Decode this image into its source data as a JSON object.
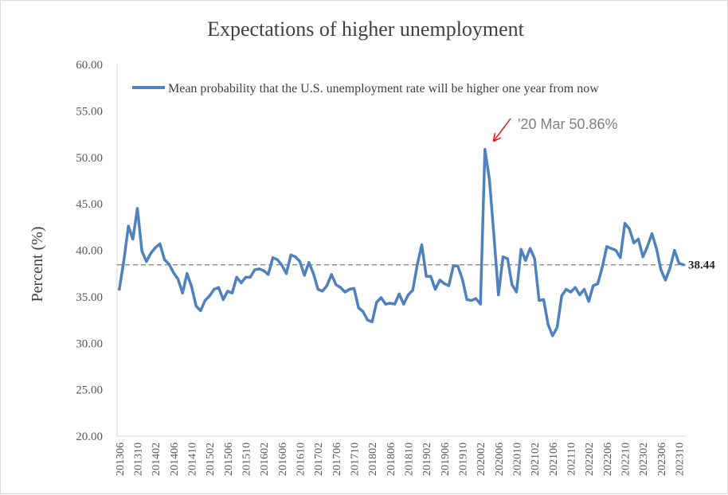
{
  "chart_data": {
    "type": "line",
    "title": "Expectations  of higher unemployment",
    "ylabel": "Percent (%)",
    "xlabel": "",
    "ylim": [
      20,
      60
    ],
    "yticks": [
      "20.00",
      "25.00",
      "30.00",
      "35.00",
      "40.00",
      "45.00",
      "50.00",
      "55.00",
      "60.00"
    ],
    "xticks": [
      "201306",
      "201310",
      "201402",
      "201406",
      "201410",
      "201502",
      "201506",
      "201510",
      "201602",
      "201606",
      "201610",
      "201702",
      "201706",
      "201710",
      "201802",
      "201806",
      "201810",
      "201902",
      "201906",
      "201910",
      "202002",
      "202006",
      "202010",
      "202102",
      "202106",
      "202110",
      "202202",
      "202206",
      "202210",
      "202302",
      "202306",
      "202310"
    ],
    "grid": false,
    "legend_position": "top",
    "series": [
      {
        "name": "Mean probability that the U.S. unemployment rate will be higher one year from now",
        "color": "#4f81bd",
        "start_month": "2013-06",
        "values": [
          35.8,
          38.9,
          42.6,
          41.2,
          44.5,
          39.9,
          38.8,
          39.7,
          40.3,
          40.7,
          39.0,
          38.5,
          37.6,
          36.9,
          35.4,
          37.5,
          36.1,
          34.0,
          33.5,
          34.6,
          35.1,
          35.8,
          36.0,
          34.7,
          35.6,
          35.4,
          37.1,
          36.5,
          37.1,
          37.1,
          37.9,
          38.0,
          37.8,
          37.4,
          39.2,
          39.0,
          38.4,
          37.5,
          39.5,
          39.3,
          38.8,
          37.3,
          38.7,
          37.5,
          35.8,
          35.6,
          36.2,
          37.4,
          36.3,
          36.0,
          35.5,
          35.8,
          35.9,
          33.8,
          33.4,
          32.5,
          32.3,
          34.4,
          34.9,
          34.2,
          34.3,
          34.2,
          35.3,
          34.2,
          35.2,
          35.7,
          38.4,
          40.6,
          37.2,
          37.2,
          35.8,
          36.8,
          36.4,
          36.2,
          38.3,
          38.3,
          36.9,
          34.7,
          34.6,
          34.8,
          34.2,
          50.86,
          47.6,
          41.5,
          35.2,
          39.3,
          39.1,
          36.3,
          35.5,
          40.1,
          38.9,
          40.2,
          39.1,
          34.6,
          34.7,
          32.0,
          30.8,
          31.7,
          35.1,
          35.8,
          35.5,
          36.0,
          35.2,
          35.8,
          34.5,
          36.2,
          36.4,
          38.2,
          40.4,
          40.2,
          40.0,
          39.2,
          42.9,
          42.3,
          40.8,
          41.2,
          39.3,
          40.4,
          41.8,
          40.2,
          37.9,
          36.8,
          38.1,
          40.0,
          38.6,
          38.44
        ]
      }
    ],
    "reference_line": {
      "value": 38.44,
      "label": "38.44",
      "color": "#7f7f7f"
    },
    "annotation": {
      "text": "'20 Mar 50.86%",
      "arrow_color": "#ff0000"
    }
  }
}
